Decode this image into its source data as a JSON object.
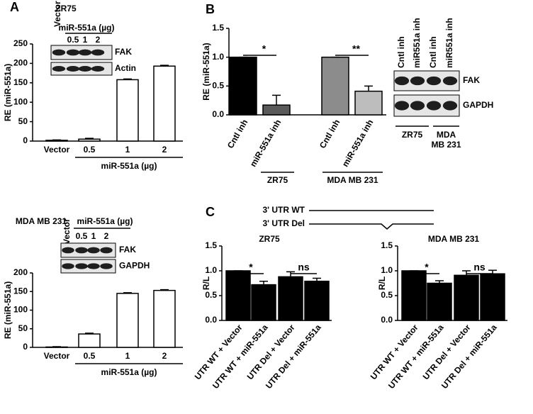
{
  "panel_labels": [
    "A",
    "B",
    "C"
  ],
  "constructs": [
    "3' UTR WT",
    "3' UTR Del"
  ],
  "chart_data": [
    {
      "type": "bar",
      "title": "ZR75",
      "y_label": "RE (miR-551a)",
      "x_label": "miR-551a (µg)",
      "categories": [
        "Vector",
        "0.5",
        "1",
        "2"
      ],
      "values": [
        2,
        5,
        158,
        193
      ],
      "errors": [
        1,
        2,
        2,
        2
      ],
      "color": "#ffffff",
      "ylim": [
        0,
        250
      ],
      "yticks": [
        0,
        50,
        100,
        150,
        200,
        250
      ],
      "blot": {
        "control_lane": "Vector",
        "lanes_title": "miR-551a (µg)",
        "lanes": [
          "0.5",
          "1",
          "2"
        ],
        "rows": [
          "FAK",
          "Actin"
        ]
      }
    },
    {
      "type": "bar",
      "title": "MDA MB 231",
      "y_label": "RE (miR-551a)",
      "x_label": "miR-551a (µg)",
      "categories": [
        "Vector",
        "0.5",
        "1",
        "2"
      ],
      "values": [
        1,
        36,
        145,
        153
      ],
      "errors": [
        1,
        2,
        2,
        2
      ],
      "color": "#ffffff",
      "ylim": [
        0,
        200
      ],
      "yticks": [
        0,
        50,
        100,
        150,
        200
      ],
      "blot": {
        "control_lane": "Vector",
        "lanes_title": "miR-551a (µg)",
        "lanes": [
          "0.5",
          "1",
          "2"
        ],
        "rows": [
          "FAK",
          "GAPDH"
        ]
      }
    },
    {
      "type": "bar",
      "y_label": "RE (miR-551a)",
      "categories": [
        "Cntl inh",
        "miR-551a inh",
        "Cntl inh",
        "miR-551a inh"
      ],
      "values": [
        1.0,
        0.17,
        1.0,
        0.41
      ],
      "errors": [
        0,
        0.17,
        0,
        0.09
      ],
      "colors": [
        "#000000",
        "#5a5a5a",
        "#8c8c8c",
        "#bdbdbd"
      ],
      "groups": [
        "ZR75",
        "MDA MB 231"
      ],
      "annotations": [
        "*",
        "**"
      ],
      "ylim": [
        0,
        1.5
      ],
      "yticks": [
        {
          "value": 0,
          "label": "0.0"
        },
        0.5,
        {
          "value": 1,
          "label": "1.0"
        },
        1.5
      ],
      "blot": {
        "lanes": [
          "Cntl inh",
          "miR551a inh",
          "Cntl inh",
          "miR551a inh"
        ],
        "rows": [
          "FAK",
          "GAPDH"
        ],
        "groups": [
          "ZR75",
          "MDA MB 231"
        ]
      }
    },
    {
      "type": "bar",
      "title": "ZR75",
      "y_label": "R/L",
      "categories": [
        "UTR WT + Vector",
        "UTR WT + miR-551a",
        "UTR Del + Vector",
        "UTR Del + miR-551a"
      ],
      "values": [
        1.0,
        0.72,
        0.88,
        0.79
      ],
      "errors": [
        0,
        0.07,
        0.1,
        0.06
      ],
      "color": "#000000",
      "annotations": [
        "*",
        "ns"
      ],
      "ylim": [
        0,
        1.5
      ],
      "yticks": [
        {
          "value": 0,
          "label": "0.0"
        },
        0.5,
        {
          "value": 1,
          "label": "1.0"
        },
        1.5
      ]
    },
    {
      "type": "bar",
      "title": "MDA MB 231",
      "y_label": "R/L",
      "categories": [
        "UTR WT + Vector",
        "UTR WT + miR-551a",
        "UTR Del + Vector",
        "UTR Del + miR-551a"
      ],
      "values": [
        1.0,
        0.75,
        0.91,
        0.94
      ],
      "errors": [
        0,
        0.05,
        0.09,
        0.07
      ],
      "color": "#000000",
      "annotations": [
        "*",
        "ns"
      ],
      "ylim": [
        0,
        1.5
      ],
      "yticks": [
        {
          "value": 0,
          "label": "0.0"
        },
        0.5,
        {
          "value": 1,
          "label": "1.0"
        },
        1.5
      ]
    }
  ]
}
